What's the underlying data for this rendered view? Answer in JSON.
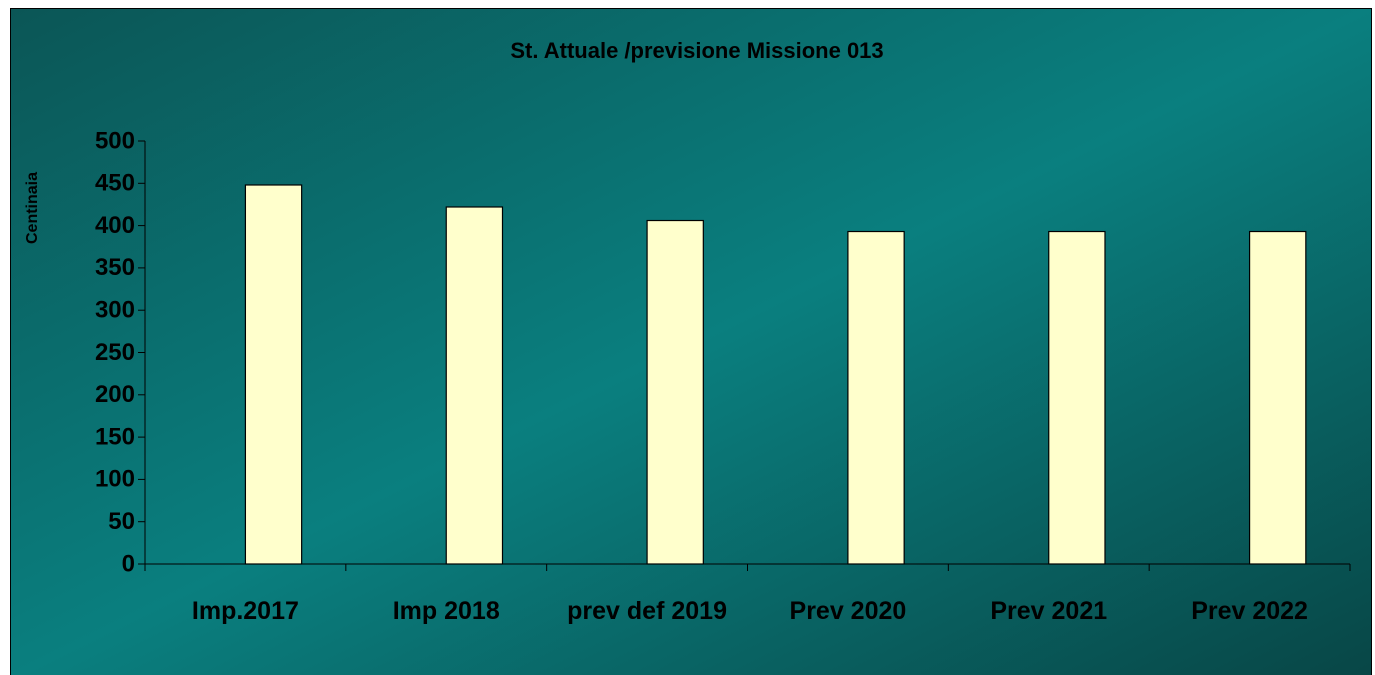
{
  "chart_data": {
    "type": "bar",
    "title": "St. Attuale /previsione Missione 013",
    "y_label": "Centinaia",
    "categories": [
      "Imp.2017",
      "Imp 2018",
      "prev def 2019",
      "Prev 2020",
      "Prev 2021",
      "Prev 2022"
    ],
    "values": [
      448,
      422,
      406,
      393,
      393,
      393
    ],
    "color": "#ffffcc",
    "ylim": [
      0,
      500
    ],
    "yticks": [
      0,
      50,
      100,
      150,
      200,
      250,
      300,
      350,
      400,
      450,
      500
    ],
    "grid": false
  }
}
